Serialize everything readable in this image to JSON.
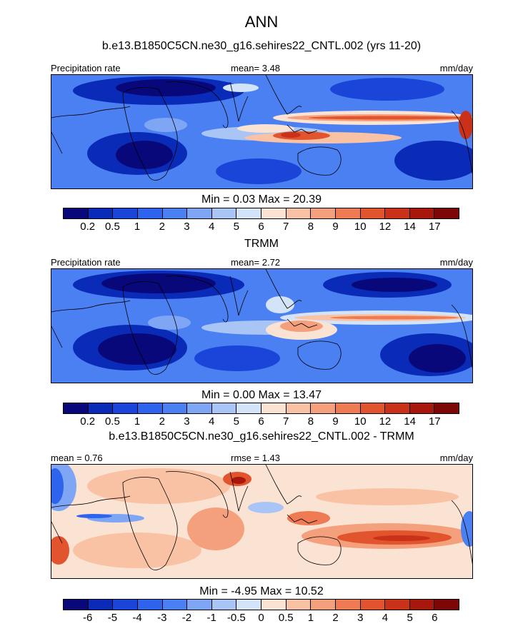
{
  "figure": {
    "title": "ANN"
  },
  "colors": {
    "abs_palette": [
      "#08087a",
      "#0a2bb8",
      "#1a45d8",
      "#2e63ee",
      "#4a80f2",
      "#7fa6f4",
      "#a9c5f6",
      "#d3e3f8",
      "#fbe3d4",
      "#f9c2a4",
      "#f5a07c",
      "#ee7b54",
      "#e2542e",
      "#c93218",
      "#a8170c",
      "#7d0606"
    ],
    "diff_palette": [
      "#08087a",
      "#0a2bb8",
      "#1a45d8",
      "#2e63ee",
      "#4a80f2",
      "#7fa6f4",
      "#a9c5f6",
      "#d3e3f8",
      "#fbe3d4",
      "#f9c2a4",
      "#f5a07c",
      "#ee7b54",
      "#e2542e",
      "#c93218",
      "#a8170c",
      "#7d0606"
    ]
  },
  "panels": [
    {
      "title": "b.e13.B1850C5CN.ne30_g16.sehires22_CNTL.002 (yrs 11-20)",
      "left_label": "Precipitation rate",
      "center_label": "mean=   3.48",
      "right_label": "mm/day",
      "minmax": "Min =   0.03 Max =  20.39",
      "colorbar_ticks": [
        "0.2",
        "0.5",
        "1",
        "2",
        "3",
        "4",
        "5",
        "6",
        "7",
        "8",
        "9",
        "10",
        "12",
        "14",
        "17"
      ]
    },
    {
      "title": "TRMM",
      "left_label": "Precipitation rate",
      "center_label": "mean=   2.72",
      "right_label": "mm/day",
      "minmax": "Min =   0.00 Max =  13.47",
      "colorbar_ticks": [
        "0.2",
        "0.5",
        "1",
        "2",
        "3",
        "4",
        "5",
        "6",
        "7",
        "8",
        "9",
        "10",
        "12",
        "14",
        "17"
      ]
    },
    {
      "title": "b.e13.B1850C5CN.ne30_g16.sehires22_CNTL.002 - TRMM",
      "left_label": "mean =   0.76",
      "center_label": "rmse =   1.43",
      "right_label": "mm/day",
      "minmax": "Min =  -4.95 Max =  10.52",
      "colorbar_ticks": [
        "-6",
        "-5",
        "-4",
        "-3",
        "-2",
        "-1",
        "-0.5",
        "0",
        "0.5",
        "1",
        "2",
        "3",
        "4",
        "5",
        "6"
      ]
    }
  ],
  "chart_data": [
    {
      "type": "heatmap",
      "title": "b.e13.B1850C5CN.ne30_g16.sehires22_CNTL.002 (yrs 11-20)",
      "variable": "Precipitation rate",
      "units": "mm/day",
      "mean": 3.48,
      "min": 0.03,
      "max": 20.39,
      "levels": [
        0.2,
        0.5,
        1,
        2,
        3,
        4,
        5,
        6,
        7,
        8,
        9,
        10,
        12,
        14,
        17
      ]
    },
    {
      "type": "heatmap",
      "title": "TRMM",
      "variable": "Precipitation rate",
      "units": "mm/day",
      "mean": 2.72,
      "min": 0.0,
      "max": 13.47,
      "levels": [
        0.2,
        0.5,
        1,
        2,
        3,
        4,
        5,
        6,
        7,
        8,
        9,
        10,
        12,
        14,
        17
      ]
    },
    {
      "type": "heatmap",
      "title": "b.e13.B1850C5CN.ne30_g16.sehires22_CNTL.002 - TRMM",
      "units": "mm/day",
      "mean": 0.76,
      "rmse": 1.43,
      "min": -4.95,
      "max": 10.52,
      "levels": [
        -6,
        -5,
        -4,
        -3,
        -2,
        -1,
        -0.5,
        0,
        0.5,
        1,
        2,
        3,
        4,
        5,
        6
      ]
    }
  ]
}
